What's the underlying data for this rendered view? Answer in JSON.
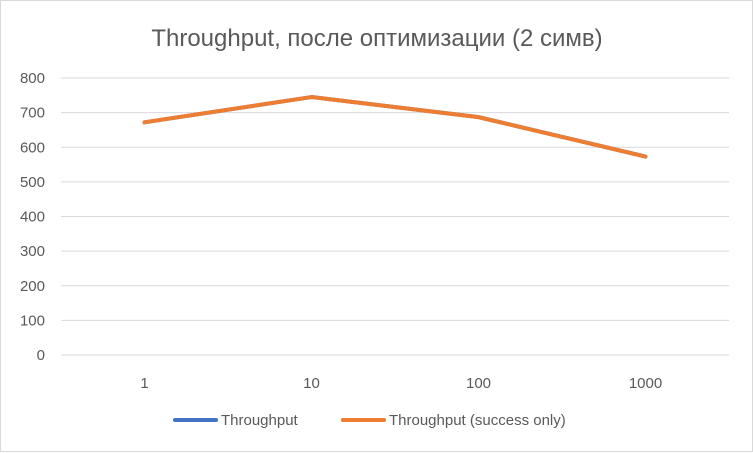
{
  "chart_data": {
    "type": "line",
    "title": "Throughput, после оптимизации (2 симв)",
    "xlabel": "",
    "ylabel": "",
    "categories": [
      "1",
      "10",
      "100",
      "1000"
    ],
    "ylim": [
      0,
      800
    ],
    "yticks": [
      0,
      100,
      200,
      300,
      400,
      500,
      600,
      700,
      800
    ],
    "grid": true,
    "legend_position": "bottom",
    "series": [
      {
        "name": "Throughput",
        "color": "#4472c4",
        "values": [
          672,
          745,
          687,
          573
        ]
      },
      {
        "name": "Throughput (success only)",
        "color": "#ed7d31",
        "values": [
          672,
          745,
          687,
          573
        ]
      }
    ]
  }
}
